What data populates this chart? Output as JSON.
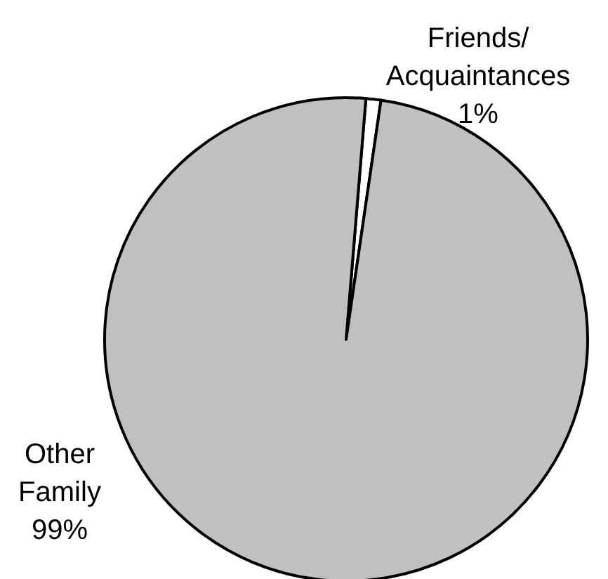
{
  "chart_data": {
    "type": "pie",
    "categories": [
      "Friends/Acquaintances",
      "Other Family"
    ],
    "values": [
      1,
      99
    ],
    "colors": [
      "#ffffff",
      "#c0c0c0"
    ],
    "value_labels": [
      "1%",
      "99%"
    ]
  }
}
